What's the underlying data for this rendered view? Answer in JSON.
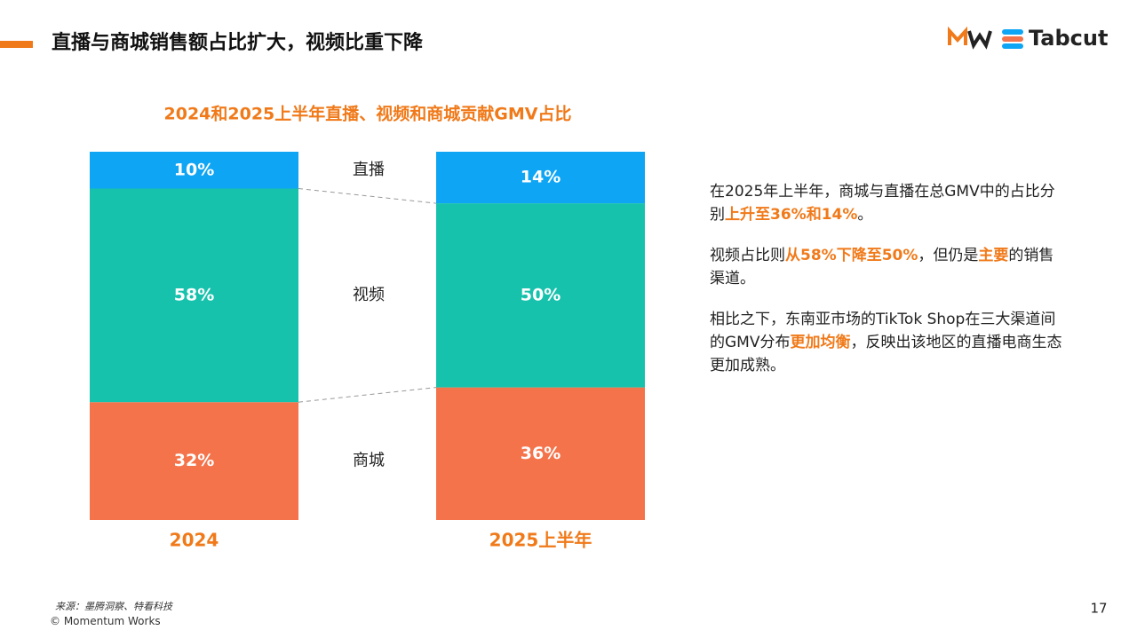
{
  "header": {
    "title": "直播与商城销售额占比扩大，视频比重下降",
    "brand": "Tabcut"
  },
  "chart_data": {
    "type": "stacked_bar",
    "title": "2024和2025上半年直播、视频和商城贡献GMV占比",
    "categories": [
      "2024",
      "2025上半年"
    ],
    "series": [
      {
        "name": "商城",
        "color": "#f4734a",
        "values": [
          32,
          36
        ],
        "value_labels": [
          "32%",
          "36%"
        ]
      },
      {
        "name": "视频",
        "color": "#17c2ad",
        "values": [
          58,
          50
        ],
        "value_labels": [
          "58%",
          "50%"
        ]
      },
      {
        "name": "直播",
        "color": "#0ea5f4",
        "values": [
          10,
          14
        ],
        "value_labels": [
          "10%",
          "14%"
        ]
      }
    ]
  },
  "text": {
    "paragraphs": [
      [
        {
          "text": "在2025年上半年，商城与直播在总GMV中的占比分别",
          "highlight": false
        },
        {
          "text": "上升至36%和14%",
          "highlight": true
        },
        {
          "text": "。",
          "highlight": false
        }
      ],
      [
        {
          "text": "视频占比则",
          "highlight": false
        },
        {
          "text": "从58%下降至50%",
          "highlight": true
        },
        {
          "text": "，但仍是",
          "highlight": false
        },
        {
          "text": "主要",
          "highlight": true
        },
        {
          "text": "的销售渠道。",
          "highlight": false
        }
      ],
      [
        {
          "text": "相比之下，东南亚市场的TikTok Shop在三大渠道间的GMV分布",
          "highlight": false
        },
        {
          "text": "更加均衡",
          "highlight": true
        },
        {
          "text": "，反映出该地区的直播电商生态更加成熟。",
          "highlight": false
        }
      ]
    ]
  },
  "footer": {
    "source": "来源：墨腾洞察、特看科技",
    "copyright": "© Momentum Works",
    "page": "17"
  }
}
